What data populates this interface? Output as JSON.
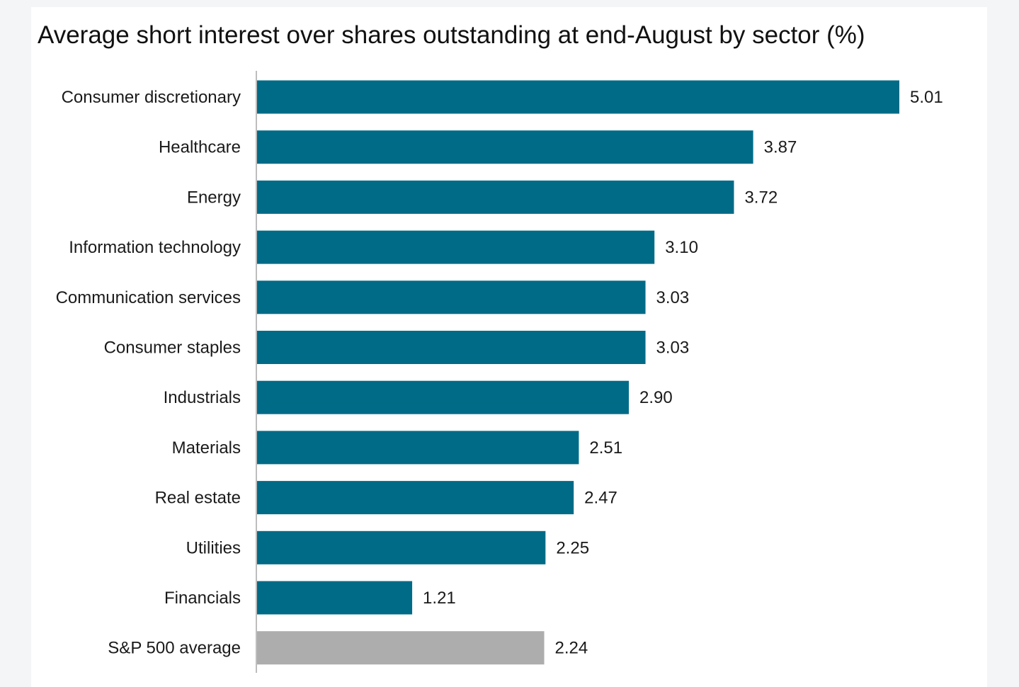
{
  "chart_data": {
    "type": "bar",
    "orientation": "horizontal",
    "title": "Average short interest over shares outstanding at end-August by sector (%)",
    "categories": [
      "Consumer discretionary",
      "Healthcare",
      "Energy",
      "Information technology",
      "Communication services",
      "Consumer staples",
      "Industrials",
      "Materials",
      "Real estate",
      "Utilities",
      "Financials",
      "S&P 500 average"
    ],
    "values": [
      5.01,
      3.87,
      3.72,
      3.1,
      3.03,
      3.03,
      2.9,
      2.51,
      2.47,
      2.25,
      1.21,
      2.24
    ],
    "value_labels": [
      "5.01",
      "3.87",
      "3.72",
      "3.10",
      "3.03",
      "3.03",
      "2.90",
      "2.51",
      "2.47",
      "2.25",
      "1.21",
      "2.24"
    ],
    "highlight_category": "S&P 500 average",
    "colors": {
      "bar": "#006b87",
      "highlight": "#adadad",
      "axis": "#bdbdbd"
    },
    "xlim": [
      0,
      5.01
    ],
    "grid": false,
    "legend": "none"
  }
}
